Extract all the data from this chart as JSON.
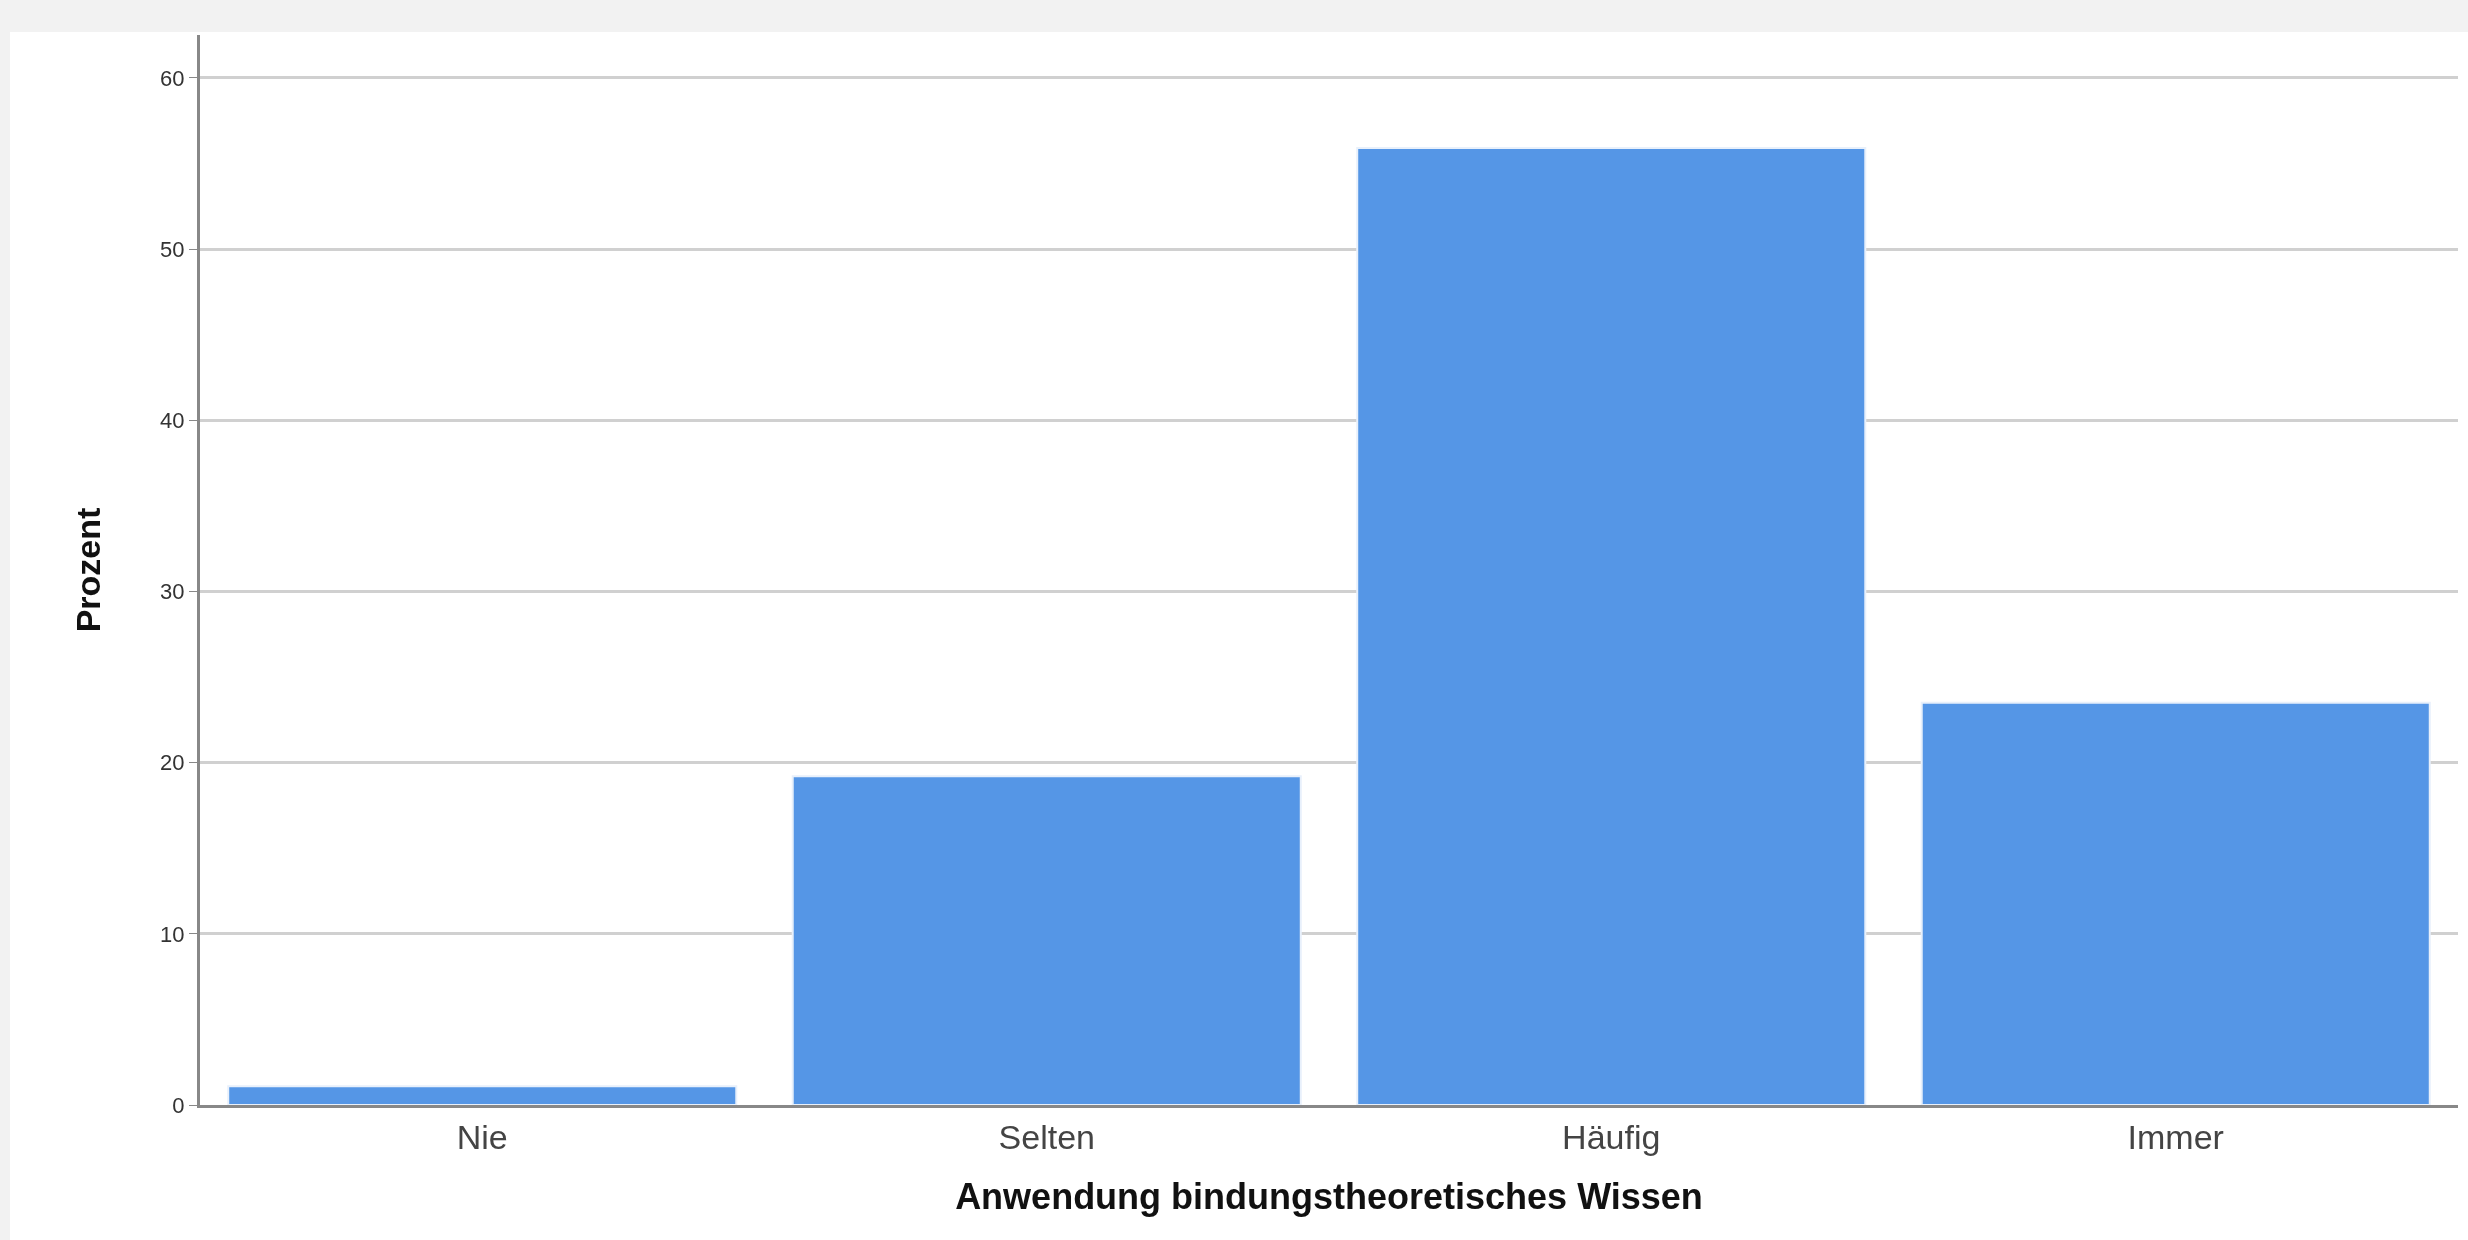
{
  "chart_data": {
    "type": "bar",
    "xlabel": "Anwendung bindungstheoretisches Wissen",
    "ylabel": "Prozent",
    "categories": [
      "Nie",
      "Selten",
      "Häufig",
      "Immer"
    ],
    "values": [
      1.1,
      19.2,
      55.9,
      23.5
    ],
    "color": "#5596e6",
    "ylim": [
      0,
      62.5
    ],
    "yticks": [
      0,
      10,
      20,
      30,
      40,
      50,
      60
    ],
    "grid": "y",
    "legend": false
  }
}
